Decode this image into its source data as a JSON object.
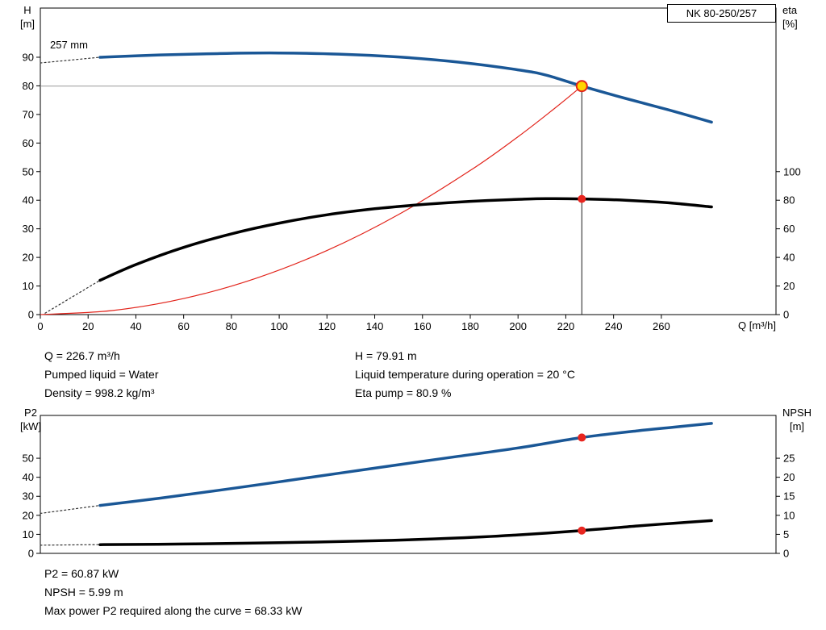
{
  "labels": {
    "pump_name": "NK 80-250/257",
    "h_axis": "H",
    "h_unit": "[m]",
    "eta_axis": "eta",
    "eta_unit": "[%]",
    "q_axis": "Q [m³/h]",
    "impeller": "257 mm",
    "p2_axis": "P2",
    "p2_unit": "[kW]",
    "npsh_axis": "NPSH",
    "npsh_unit": "[m]"
  },
  "info_top": {
    "left": [
      "Q = 226.7 m³/h",
      "Pumped liquid = Water",
      "Density = 998.2 kg/m³"
    ],
    "right": [
      "H = 79.91 m",
      "Liquid temperature during operation = 20 °C",
      "Eta pump = 80.9 %"
    ]
  },
  "info_bottom": [
    "P2 = 60.87 kW",
    "NPSH = 5.99 m",
    "Max power P2 required along the curve = 68.33 kW"
  ],
  "colors": {
    "curve_blue": "#1a5796",
    "curve_black": "#000000",
    "curve_red": "#e2231a",
    "duty_yellow": "#ffd500",
    "dot_red": "#e8251f",
    "duty_h_line": "#999999",
    "duty_v_line": "#1a1a1a"
  },
  "chart_data": [
    {
      "type": "line",
      "title": "NK 80-250/257",
      "xlabel": "Q [m³/h]",
      "ylabel_left": "H [m]",
      "ylabel_right": "eta [%]",
      "x_range": [
        0,
        308
      ],
      "x_ticks": [
        0,
        20,
        40,
        60,
        80,
        100,
        120,
        140,
        160,
        180,
        200,
        220,
        240,
        260
      ],
      "y_left_range": [
        0,
        107.2
      ],
      "y_left_ticks": [
        0,
        10,
        20,
        30,
        40,
        50,
        60,
        70,
        80,
        90
      ],
      "y_right_range": [
        0,
        214.4
      ],
      "y_right_ticks": [
        0,
        20,
        40,
        60,
        80,
        100
      ],
      "duty_point": {
        "q": 226.7,
        "h": 79.91,
        "eta": 80.9
      },
      "duty_lines": [
        {
          "name": "duty-hline",
          "type": "h",
          "y": 79.91,
          "x_from": 0,
          "x_to": 226.7,
          "axis": "left",
          "color": "#999999",
          "width": 1
        },
        {
          "name": "duty-vline",
          "type": "v",
          "x": 226.7,
          "y_from": 0,
          "y_to": 79.91,
          "axis": "left",
          "color": "#1a1a1a",
          "width": 1
        }
      ],
      "series": [
        {
          "name": "affinity-parabola",
          "axis": "left",
          "color": "#e2231a",
          "width": 1.2,
          "points": [
            [
              0,
              0
            ],
            [
              30,
              1.4
            ],
            [
              60,
              5.6
            ],
            [
              90,
              12.6
            ],
            [
              120,
              22.4
            ],
            [
              150,
              35.0
            ],
            [
              180,
              50.4
            ],
            [
              200,
              62.2
            ],
            [
              215,
              71.9
            ],
            [
              226.7,
              79.91
            ]
          ]
        },
        {
          "name": "head-curve-dashed",
          "axis": "left",
          "color": "#333333",
          "width": 1.2,
          "dash": "2 3",
          "points": [
            [
              0,
              88
            ],
            [
              25,
              90
            ]
          ]
        },
        {
          "name": "head-curve",
          "axis": "left",
          "color": "#1a5796",
          "width": 3.5,
          "points": [
            [
              25,
              90
            ],
            [
              50,
              90.8
            ],
            [
              75,
              91.3
            ],
            [
              100,
              91.5
            ],
            [
              125,
              91.1
            ],
            [
              150,
              90.1
            ],
            [
              175,
              88.3
            ],
            [
              200,
              85.6
            ],
            [
              212,
              83.7
            ],
            [
              226.7,
              79.91
            ],
            [
              245,
              75.6
            ],
            [
              263,
              71.6
            ],
            [
              281,
              67.3
            ]
          ]
        },
        {
          "name": "eta-curve-dashed",
          "axis": "right",
          "color": "#333333",
          "width": 1.2,
          "dash": "2 3",
          "points": [
            [
              2,
              1
            ],
            [
              25,
              24
            ]
          ]
        },
        {
          "name": "eta-curve",
          "axis": "right",
          "color": "#000000",
          "width": 3.5,
          "points": [
            [
              25,
              24
            ],
            [
              40,
              35
            ],
            [
              60,
              47
            ],
            [
              80,
              56.5
            ],
            [
              100,
              64
            ],
            [
              120,
              69.8
            ],
            [
              140,
              74
            ],
            [
              160,
              77
            ],
            [
              180,
              79.2
            ],
            [
              200,
              80.6
            ],
            [
              212,
              81.1
            ],
            [
              226.7,
              80.9
            ],
            [
              245,
              80
            ],
            [
              263,
              78.2
            ],
            [
              281,
              75.3
            ]
          ]
        }
      ],
      "markers": [
        {
          "name": "eta-duty-marker",
          "x": 226.7,
          "y": 80.9,
          "axis": "right",
          "r": 5,
          "fill": "#e8251f"
        },
        {
          "name": "duty-point-marker",
          "x": 226.7,
          "y": 79.91,
          "axis": "left",
          "r": 6.5,
          "fill": "#ffd500",
          "stroke": "#e2231a",
          "sw": 2
        }
      ]
    },
    {
      "type": "line",
      "title": "",
      "xlabel": "",
      "ylabel_left": "P2 [kW]",
      "ylabel_right": "NPSH [m]",
      "x_range": [
        0,
        308
      ],
      "x_ticks": [],
      "y_left_range": [
        0,
        72.5
      ],
      "y_left_ticks": [
        0,
        10,
        20,
        30,
        40,
        50
      ],
      "y_right_range": [
        0,
        36.25
      ],
      "y_right_ticks": [
        0,
        5,
        10,
        15,
        20,
        25
      ],
      "duty_point": {
        "q": 226.7,
        "p2": 60.87,
        "npsh": 5.99
      },
      "duty_lines": [],
      "series": [
        {
          "name": "p2-curve-dashed",
          "axis": "left",
          "color": "#333333",
          "width": 1.2,
          "dash": "2 3",
          "points": [
            [
              0,
              21
            ],
            [
              25,
              25.2
            ]
          ]
        },
        {
          "name": "p2-curve",
          "axis": "left",
          "color": "#1a5796",
          "width": 3.5,
          "points": [
            [
              25,
              25.2
            ],
            [
              50,
              29
            ],
            [
              75,
              33.2
            ],
            [
              100,
              37.6
            ],
            [
              125,
              42.1
            ],
            [
              150,
              46.6
            ],
            [
              175,
              51
            ],
            [
              200,
              55.4
            ],
            [
              226.7,
              60.87
            ],
            [
              250,
              64.4
            ],
            [
              265,
              66.3
            ],
            [
              281,
              68.3
            ]
          ]
        },
        {
          "name": "npsh-curve-dashed",
          "axis": "right",
          "color": "#333333",
          "width": 1.2,
          "dash": "2 3",
          "points": [
            [
              0,
              2.15
            ],
            [
              25,
              2.3
            ]
          ]
        },
        {
          "name": "npsh-curve",
          "axis": "right",
          "color": "#000000",
          "width": 3.5,
          "points": [
            [
              25,
              2.3
            ],
            [
              60,
              2.45
            ],
            [
              100,
              2.8
            ],
            [
              140,
              3.3
            ],
            [
              175,
              4.05
            ],
            [
              200,
              4.85
            ],
            [
              226.7,
              5.99
            ],
            [
              250,
              7.2
            ],
            [
              265,
              7.9
            ],
            [
              281,
              8.6
            ]
          ]
        }
      ],
      "markers": [
        {
          "name": "p2-duty-marker",
          "x": 226.7,
          "y": 60.87,
          "axis": "left",
          "r": 5,
          "fill": "#e8251f"
        },
        {
          "name": "npsh-duty-marker",
          "x": 226.7,
          "y": 5.99,
          "axis": "right",
          "r": 5,
          "fill": "#e8251f"
        }
      ]
    }
  ]
}
